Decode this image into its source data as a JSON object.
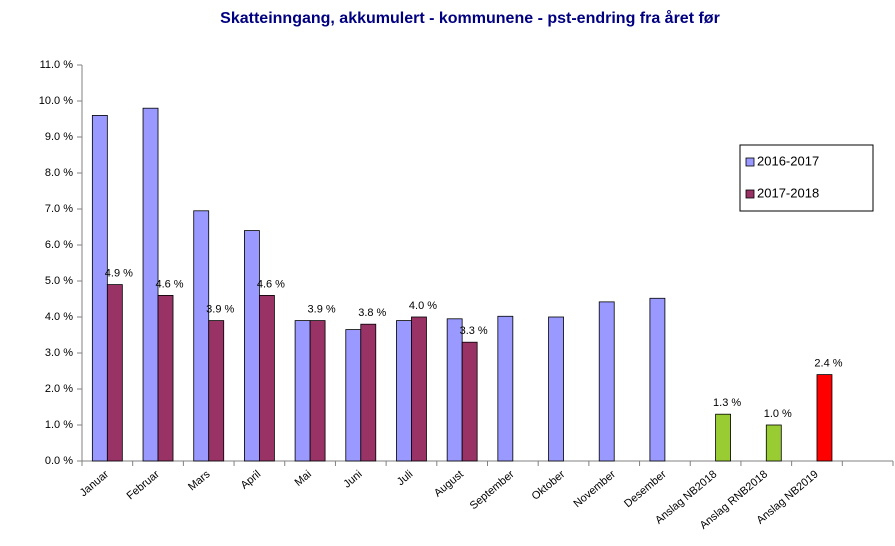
{
  "chart_data": {
    "type": "bar",
    "title": "Skatteinngang, akkumulert - kommunene  - pst-endring fra året før",
    "categories": [
      "Januar",
      "Februar",
      "Mars",
      "April",
      "Mai",
      "Juni",
      "Juli",
      "August",
      "September",
      "Oktober",
      "November",
      "Desember",
      "Anslag NB2018",
      "Anslag RNB2018",
      "Anslag NB2019",
      null
    ],
    "series": [
      {
        "name": "2016-2017",
        "color": "#9999ff",
        "values": [
          9.6,
          9.8,
          6.95,
          6.4,
          3.9,
          3.65,
          3.9,
          3.95,
          4.02,
          4.0,
          4.42,
          4.52,
          null,
          null,
          null,
          null
        ]
      },
      {
        "name": "2017-2018",
        "color": "#993366",
        "point_colors": [
          "#993366",
          "#993366",
          "#993366",
          "#993366",
          "#993366",
          "#993366",
          "#993366",
          "#993366",
          null,
          null,
          null,
          null,
          "#99cc33",
          "#99cc33",
          "#ff0000",
          null
        ],
        "values": [
          4.9,
          4.6,
          3.9,
          4.6,
          3.9,
          3.8,
          4.0,
          3.3,
          null,
          null,
          null,
          null,
          1.3,
          1.0,
          2.4,
          null
        ],
        "value_labels": [
          "4.9 %",
          "4.6 %",
          "3.9 %",
          "4.6 %",
          "3.9 %",
          "3.8 %",
          "4.0 %",
          "3.3 %",
          null,
          null,
          null,
          null,
          "1.3 %",
          "1.0 %",
          "2.4 %",
          null
        ]
      }
    ],
    "ylim": [
      0,
      11
    ],
    "yticks": [
      {
        "value": 0,
        "label": "0.0 %"
      },
      {
        "value": 1,
        "label": "1.0 %"
      },
      {
        "value": 2,
        "label": "2.0 %"
      },
      {
        "value": 3,
        "label": "3.0 %"
      },
      {
        "value": 4,
        "label": "4.0 %"
      },
      {
        "value": 5,
        "label": "5.0 %"
      },
      {
        "value": 6,
        "label": "6.0 %"
      },
      {
        "value": 7,
        "label": "7.0 %"
      },
      {
        "value": 8,
        "label": "8.0 %"
      },
      {
        "value": 9,
        "label": "9.0 %"
      },
      {
        "value": 10,
        "label": "10.0 %"
      },
      {
        "value": 11,
        "label": "11.0 %"
      }
    ],
    "grid": false,
    "legend": "right"
  }
}
